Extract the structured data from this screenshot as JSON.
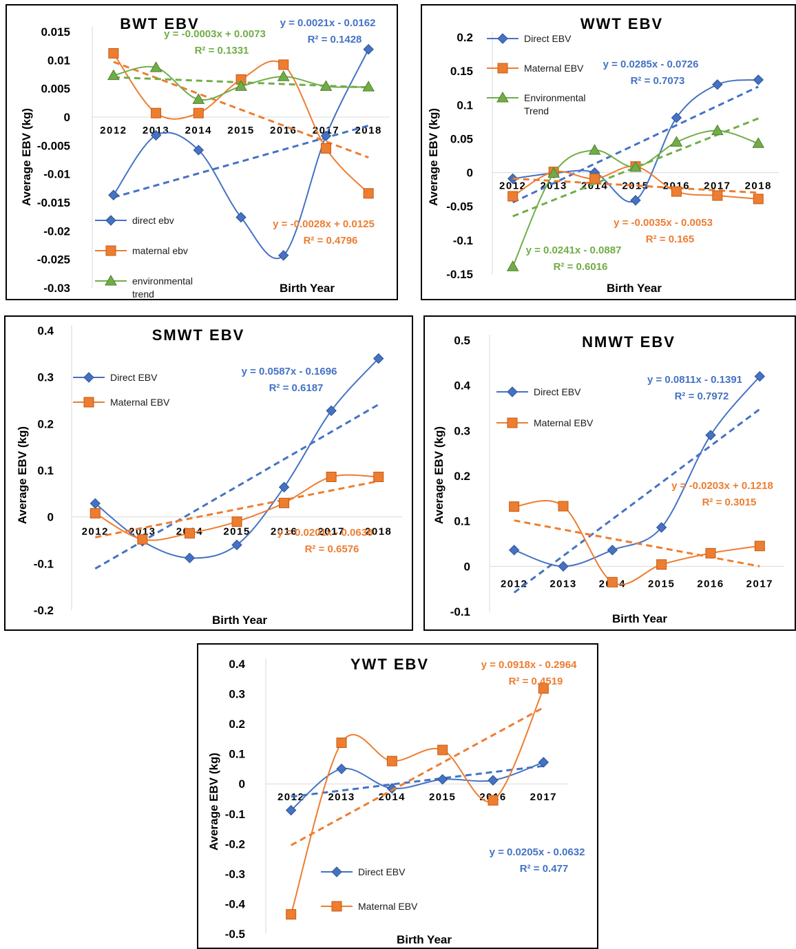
{
  "colors": {
    "direct": "#4472C4",
    "maternal": "#ED7D31",
    "environmental": "#70AD47"
  },
  "icons": {
    "direct": "diamond-marker",
    "maternal": "square-marker",
    "environmental": "triangle-marker"
  },
  "chart_data": [
    {
      "type": "line",
      "title": "BWT EBV",
      "xlabel": "Birth Year",
      "ylabel": "Average EBV (kg)",
      "x": [
        "2012",
        "2013",
        "2014",
        "2015",
        "2016",
        "2017",
        "2018"
      ],
      "ylim": [
        -0.03,
        0.015
      ],
      "yticks": [
        "0.015",
        "0.01",
        "0.005",
        "0",
        "-0.005",
        "-0.01",
        "-0.015",
        "-0.02",
        "-0.025",
        "-0.03"
      ],
      "legend_position": "bottom-left",
      "series": [
        {
          "name": "direct ebv",
          "color": "#4472C4",
          "marker": "diamond",
          "values": [
            -0.0137,
            -0.0032,
            -0.0058,
            -0.0176,
            -0.0243,
            -0.0033,
            0.0119
          ],
          "trend_equation": "y = 0.0021x - 0.0162",
          "trend_r2": "R² = 0.1428"
        },
        {
          "name": "maternal ebv",
          "color": "#ED7D31",
          "marker": "square",
          "values": [
            0.0112,
            0.0007,
            0.0007,
            0.0066,
            0.0092,
            -0.0055,
            -0.0134
          ],
          "trend_equation": "y = -0.0028x + 0.0125",
          "trend_r2": "R² = 0.4796"
        },
        {
          "name": "environmental trend",
          "color": "#70AD47",
          "marker": "triangle",
          "values": [
            0.0073,
            0.0087,
            0.0031,
            0.0054,
            0.0071,
            0.0054,
            0.0053
          ],
          "trend_equation": "y = -0.0003x + 0.0073",
          "trend_r2": "R² = 0.1331"
        }
      ]
    },
    {
      "type": "line",
      "title": "WWT EBV",
      "xlabel": "Birth Year",
      "ylabel": "Average EBV (kg)",
      "x": [
        "2012",
        "2013",
        "2014",
        "2015",
        "2016",
        "2017",
        "2018"
      ],
      "ylim": [
        -0.15,
        0.2
      ],
      "yticks": [
        "0.2",
        "0.15",
        "0.1",
        "0.05",
        "0",
        "-0.05",
        "-0.1",
        "-0.15"
      ],
      "legend_position": "top-left",
      "series": [
        {
          "name": "Direct EBV",
          "color": "#4472C4",
          "marker": "diamond",
          "values": [
            -0.009,
            -0.001,
            0.0,
            -0.041,
            0.081,
            0.13,
            0.137
          ],
          "trend_equation": "y = 0.0285x - 0.0726",
          "trend_r2": "R² = 0.7073"
        },
        {
          "name": "Maternal EBV",
          "color": "#ED7D31",
          "marker": "square",
          "values": [
            -0.035,
            0.001,
            -0.009,
            0.009,
            -0.028,
            -0.034,
            -0.039
          ],
          "trend_equation": "y = -0.0035x - 0.0053",
          "trend_r2": "R² = 0.165"
        },
        {
          "name": "Environmental Trend",
          "color": "#70AD47",
          "marker": "triangle",
          "values": [
            -0.139,
            -0.001,
            0.033,
            0.008,
            0.045,
            0.062,
            0.043
          ],
          "trend_equation": "y = 0.0241x - 0.0887",
          "trend_r2": "R² = 0.6016"
        }
      ]
    },
    {
      "type": "line",
      "title": "SMWT EBV",
      "xlabel": "Birth Year",
      "ylabel": "Average EBV (kg)",
      "x": [
        "2012",
        "2013",
        "2014",
        "2015",
        "2016",
        "2017",
        "2018"
      ],
      "ylim": [
        -0.2,
        0.4
      ],
      "yticks": [
        "0.4",
        "0.3",
        "0.2",
        "0.1",
        "0",
        "-0.1",
        "-0.2"
      ],
      "legend_position": "top-left",
      "series": [
        {
          "name": "Direct EBV",
          "color": "#4472C4",
          "marker": "diamond",
          "values": [
            0.029,
            -0.052,
            -0.088,
            -0.06,
            0.064,
            0.228,
            0.34
          ],
          "trend_equation": "y = 0.0587x - 0.1696",
          "trend_r2": "R² = 0.6187"
        },
        {
          "name": "Maternal EBV",
          "color": "#ED7D31",
          "marker": "square",
          "values": [
            0.008,
            -0.048,
            -0.035,
            -0.01,
            0.03,
            0.086,
            0.086
          ],
          "trend_equation": "y = 0.0201x - 0.0638",
          "trend_r2": "R² = 0.6576"
        }
      ]
    },
    {
      "type": "line",
      "title": "NMWT EBV",
      "xlabel": "Birth Year",
      "ylabel": "Average EBV (kg)",
      "x": [
        "2012",
        "2013",
        "2014",
        "2015",
        "2016",
        "2017"
      ],
      "ylim": [
        -0.1,
        0.5
      ],
      "yticks": [
        "0.5",
        "0.4",
        "0.3",
        "0.2",
        "0.1",
        "0",
        "-0.1"
      ],
      "legend_position": "top-left",
      "series": [
        {
          "name": "Direct EBV",
          "color": "#4472C4",
          "marker": "diamond",
          "values": [
            0.036,
            0.0,
            0.036,
            0.086,
            0.29,
            0.42
          ],
          "trend_equation": "y = 0.0811x - 0.1391",
          "trend_r2": "R² = 0.7972"
        },
        {
          "name": "Maternal EBV",
          "color": "#ED7D31",
          "marker": "square",
          "values": [
            0.132,
            0.133,
            -0.035,
            0.004,
            0.029,
            0.045
          ],
          "trend_equation": "y = -0.0203x + 0.1218",
          "trend_r2": "R² = 0.3015"
        }
      ]
    },
    {
      "type": "line",
      "title": "YWT EBV",
      "xlabel": "Birth Year",
      "ylabel": "Average EBV (kg)",
      "x": [
        "2012",
        "2013",
        "2014",
        "2015",
        "2016",
        "2017"
      ],
      "ylim": [
        -0.5,
        0.4
      ],
      "yticks": [
        "0.4",
        "0.3",
        "0.2",
        "0.1",
        "0",
        "-0.1",
        "-0.2",
        "-0.3",
        "-0.4",
        "-0.5"
      ],
      "legend_position": "bottom-center",
      "series": [
        {
          "name": "Direct EBV",
          "color": "#4472C4",
          "marker": "diamond",
          "values": [
            -0.088,
            0.05,
            -0.015,
            0.015,
            0.012,
            0.072
          ],
          "trend_equation": "y = 0.0205x - 0.0632",
          "trend_r2": "R² = 0.477"
        },
        {
          "name": "Maternal EBV",
          "color": "#ED7D31",
          "marker": "square",
          "values": [
            -0.435,
            0.137,
            0.076,
            0.113,
            -0.055,
            0.318
          ],
          "trend_equation": "y = 0.0918x - 0.2964",
          "trend_r2": "R² = 0.4519"
        }
      ]
    }
  ]
}
